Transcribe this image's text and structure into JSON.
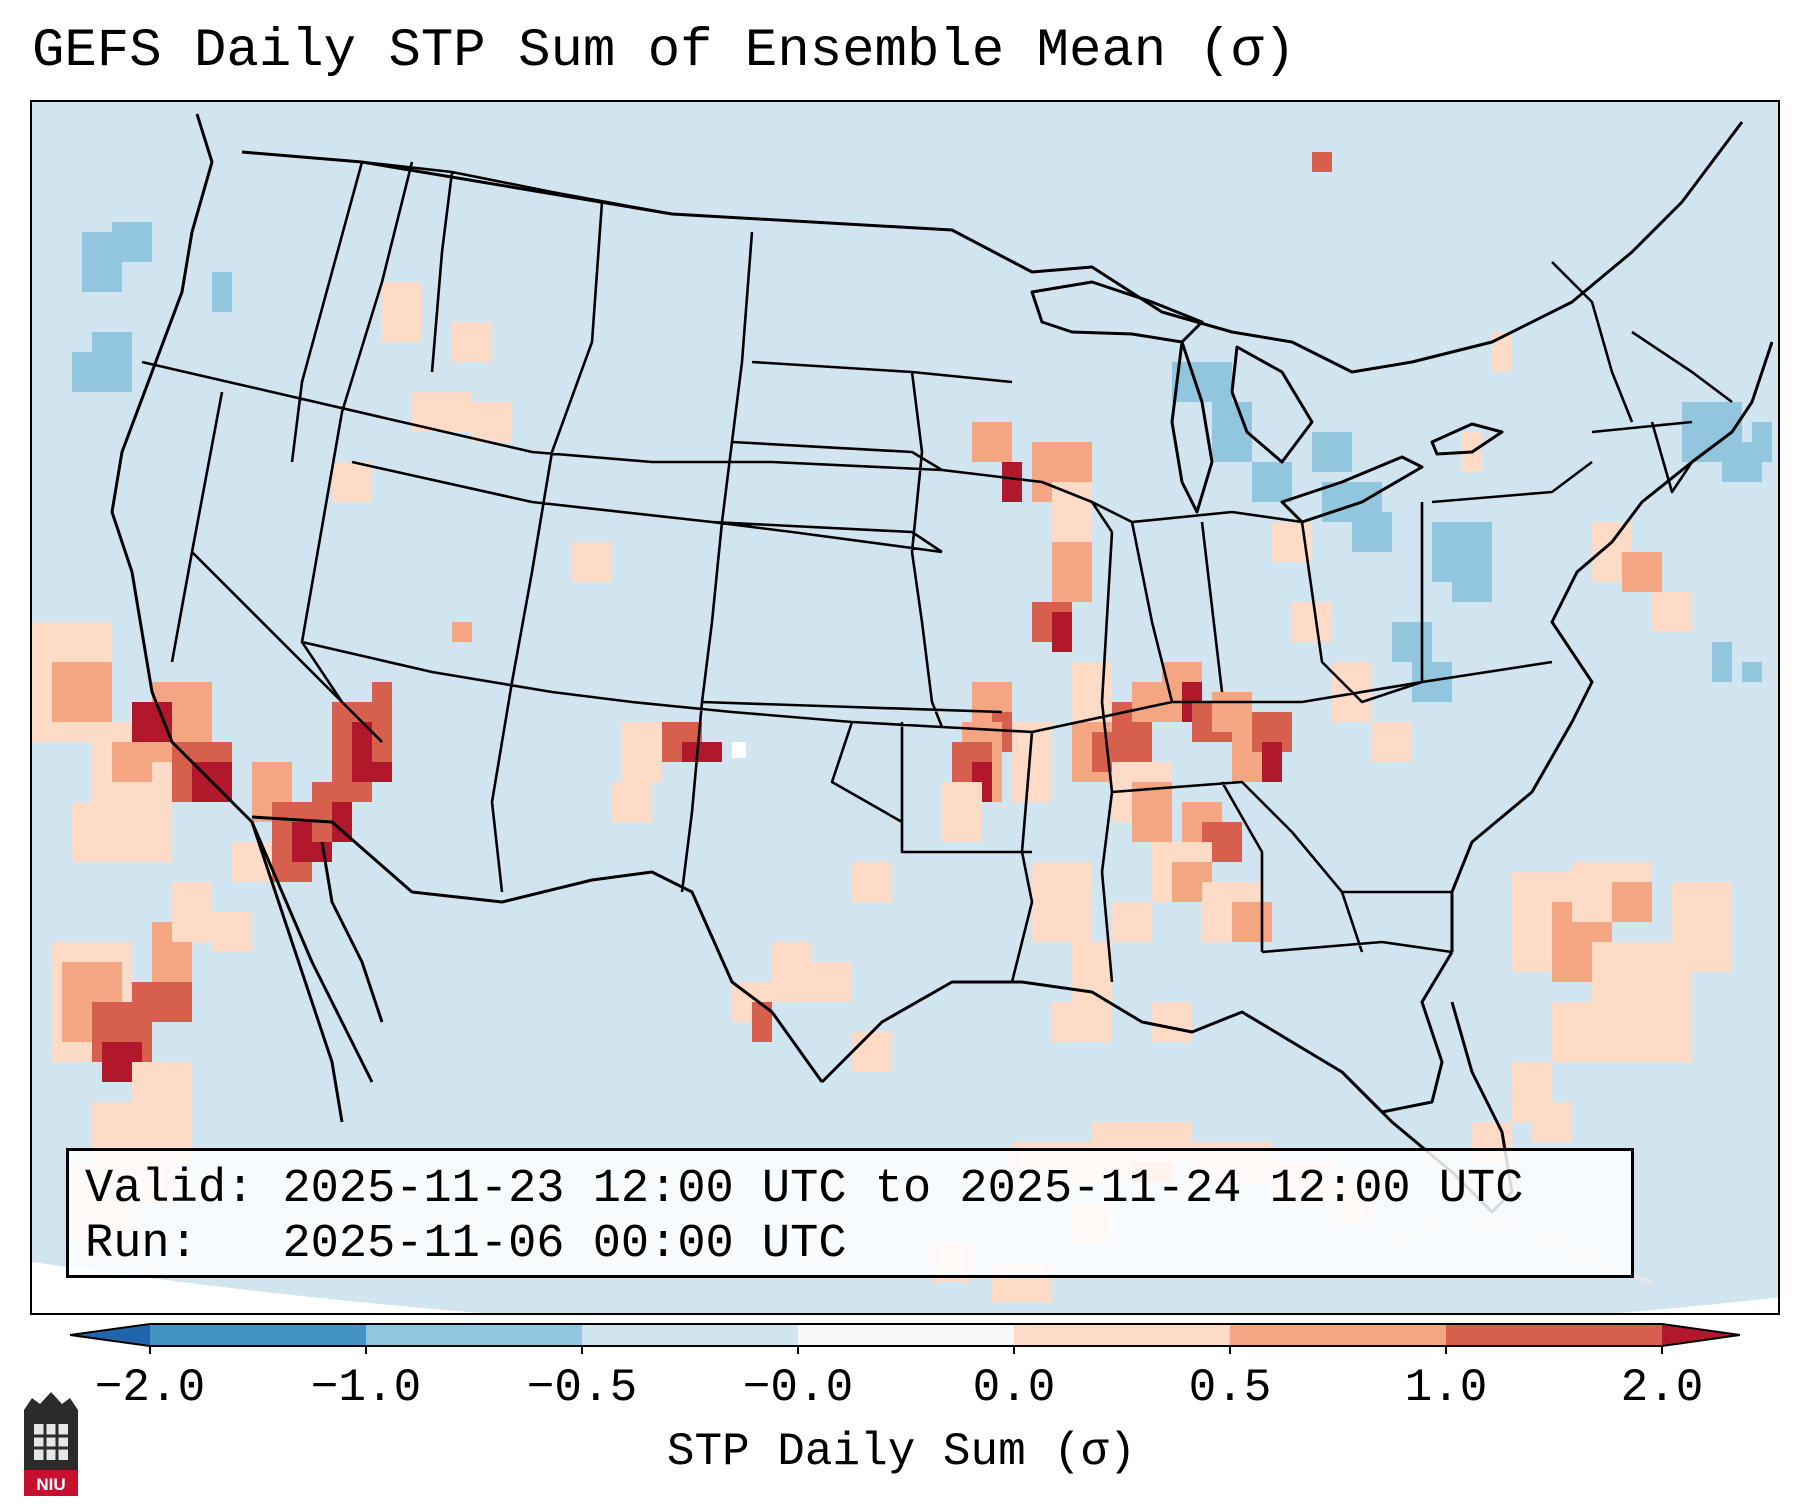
{
  "title": "GEFS Daily STP Sum of Ensemble Mean (σ)",
  "info": {
    "valid_label": "Valid:",
    "valid_value": "2025-11-23 12:00 UTC to 2025-11-24 12:00 UTC",
    "run_label": "Run:",
    "run_value": "2025-11-06 00:00 UTC"
  },
  "colorbar": {
    "label": "STP Daily Sum (σ)",
    "ticks": [
      "−2.0",
      "−1.0",
      "−0.5",
      "−0.0",
      "0.0",
      "0.5",
      "1.0",
      "2.0"
    ],
    "bins": [
      {
        "range": "< -2.0",
        "color": "#2166ac"
      },
      {
        "range": "-2.0 to -1.0",
        "color": "#4393c3"
      },
      {
        "range": "-1.0 to -0.5",
        "color": "#92c5de"
      },
      {
        "range": "-0.5 to -0.0",
        "color": "#d1e5f0"
      },
      {
        "range": "-0.0 to 0.0",
        "color": "#f7f7f7"
      },
      {
        "range": "0.0 to 0.5",
        "color": "#fddbc7"
      },
      {
        "range": "0.5 to 1.0",
        "color": "#f4a582"
      },
      {
        "range": "1.0 to 2.0",
        "color": "#d6604d"
      },
      {
        "range": "> 2.0",
        "color": "#b2182b"
      }
    ]
  },
  "map": {
    "region": "CONUS",
    "background_color": "#d1e5f0",
    "border_color": "#000000"
  },
  "logo": {
    "text": "NIU",
    "color": "#c8102e"
  }
}
